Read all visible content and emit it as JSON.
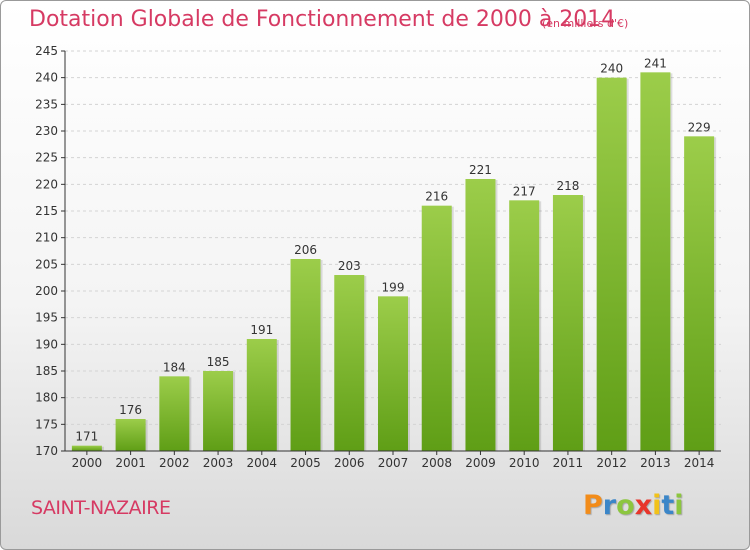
{
  "chart_data": {
    "type": "bar",
    "title": "Dotation Globale de Fonctionnement de 2000 à 2014",
    "subtitle": "(en milliers d'€)",
    "xlabel": "",
    "ylabel": "",
    "categories": [
      "2000",
      "2001",
      "2002",
      "2003",
      "2004",
      "2005",
      "2006",
      "2007",
      "2008",
      "2009",
      "2010",
      "2011",
      "2012",
      "2013",
      "2014"
    ],
    "values": [
      171,
      176,
      184,
      185,
      191,
      206,
      203,
      199,
      216,
      221,
      217,
      218,
      240,
      241,
      229
    ],
    "data_labels": [
      "171",
      "176",
      "184",
      "185",
      "191",
      "206",
      "203",
      "199",
      "216",
      "221",
      "217",
      "218",
      "240",
      "241",
      "229"
    ],
    "ylim": [
      170,
      245
    ],
    "yticks": [
      "170",
      "175",
      "180",
      "185",
      "190",
      "195",
      "200",
      "205",
      "210",
      "215",
      "220",
      "225",
      "230",
      "235",
      "240",
      "245"
    ],
    "grid": true,
    "colors": {
      "bar_light": "#9ccd4a",
      "bar_dark": "#5f9e16",
      "title": "#d63a63",
      "grid": "#d4d4d4",
      "axis": "#333333"
    }
  },
  "footer": {
    "commune": "SAINT-NAZAIRE",
    "logo_letters": [
      "P",
      "r",
      "o",
      "x",
      "i",
      "t",
      "i"
    ],
    "logo_colors": [
      "#f28c1a",
      "#3b86c8",
      "#8cc63f",
      "#e8352b",
      "#f2c21a",
      "#3b86c8",
      "#8cc63f"
    ]
  }
}
